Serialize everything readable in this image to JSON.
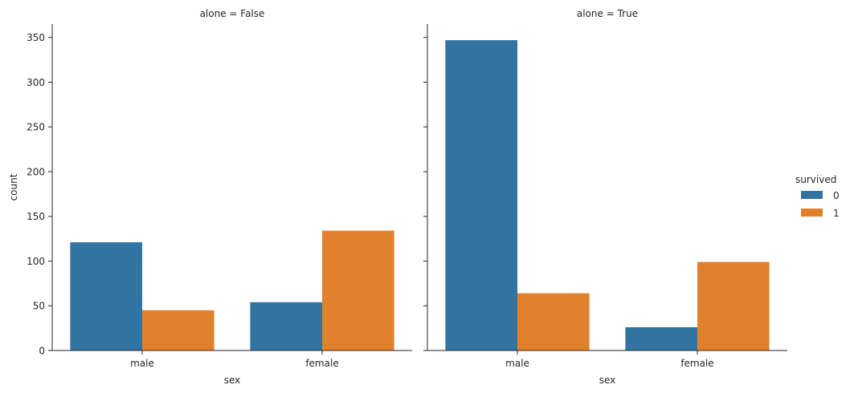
{
  "chart_data": {
    "type": "bar",
    "colors": {
      "0": "#3274a1",
      "1": "#e1812c",
      "axis": "#262626"
    },
    "ylabel": "count",
    "ylim": [
      0,
      365
    ],
    "yticks": [
      0,
      50,
      100,
      150,
      200,
      250,
      300,
      350
    ],
    "legend": {
      "title": "survived",
      "entries": [
        "0",
        "1"
      ],
      "placement": "right"
    },
    "facets": [
      {
        "title": "alone = False",
        "xlabel": "sex",
        "categories": [
          "male",
          "female"
        ],
        "series": [
          {
            "name": "0",
            "values": [
              121,
              54
            ]
          },
          {
            "name": "1",
            "values": [
              45,
              134
            ]
          }
        ]
      },
      {
        "title": "alone = True",
        "xlabel": "sex",
        "categories": [
          "male",
          "female"
        ],
        "series": [
          {
            "name": "0",
            "values": [
              347,
              26
            ]
          },
          {
            "name": "1",
            "values": [
              64,
              99
            ]
          }
        ]
      }
    ]
  }
}
